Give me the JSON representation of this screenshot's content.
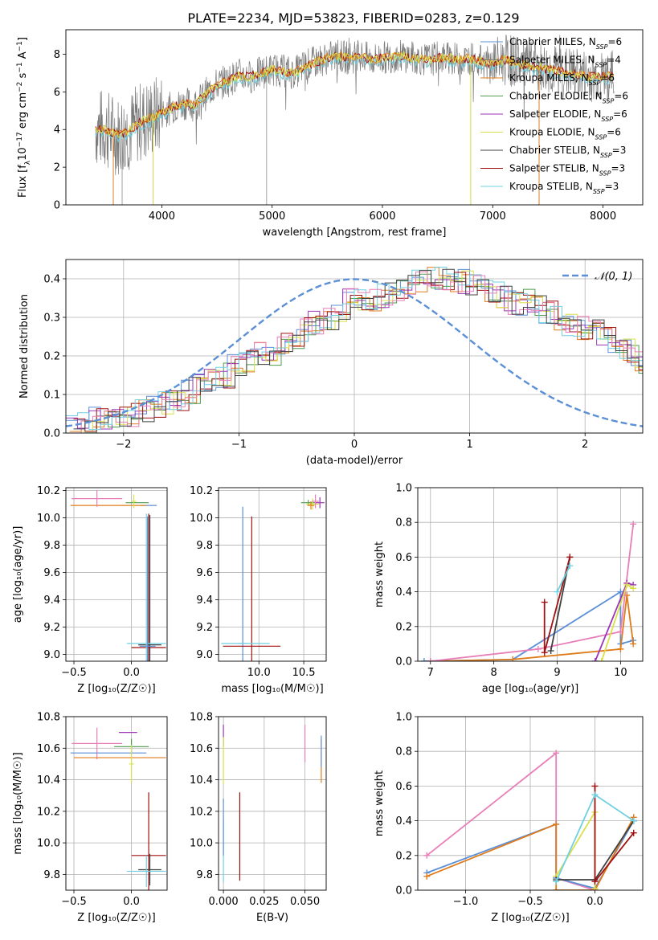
{
  "title": "PLATE=2234, MJD=53823, FIBERID=0283, z=0.129",
  "colors": {
    "Chabrier MILES": "#5b8fd6",
    "Salpeter MILES": "#7a7a7a",
    "Kroupa MILES": "#e07b1a",
    "Chabrier ELODIE": "#4f9c4f",
    "Salpeter ELODIE": "#9b36b8",
    "Kroupa ELODIE": "#d9e04a",
    "Chabrier STELIB": "#404040",
    "Salpeter STELIB": "#a01010",
    "Kroupa STELIB": "#6fd0e0",
    "extra_pink": "#e87fb8",
    "normal_curve": "#5b8fd6"
  },
  "chart_data": [
    {
      "id": "spectrum",
      "type": "line",
      "xlabel": "wavelength [Angstrom, rest frame]",
      "ylabel_parts": [
        "Flux [f",
        "λ",
        "10",
        "−17",
        " erg cm",
        "−2",
        " s",
        "−1",
        " A",
        "−1",
        "]"
      ],
      "xlim": [
        3130,
        8360
      ],
      "ylim": [
        0,
        9.3
      ],
      "xticks": [
        4000,
        5000,
        6000,
        7000,
        8000
      ],
      "yticks": [
        0,
        2,
        4,
        6,
        8
      ],
      "legend_position": "upper-right",
      "legend": [
        {
          "name": "Chabrier MILES",
          "n": "6"
        },
        {
          "name": "Salpeter MILES",
          "n": "4"
        },
        {
          "name": "Kroupa MILES",
          "n": "6"
        },
        {
          "name": "Chabrier ELODIE",
          "n": "6"
        },
        {
          "name": "Salpeter ELODIE",
          "n": "6"
        },
        {
          "name": "Kroupa ELODIE",
          "n": "6"
        },
        {
          "name": "Chabrier STELIB",
          "n": "3"
        },
        {
          "name": "Salpeter STELIB",
          "n": "3"
        },
        {
          "name": "Kroupa STELIB",
          "n": "3"
        }
      ],
      "legend_suffix": "N",
      "legend_sub": "SSP",
      "continuum": [
        [
          3400,
          4.1
        ],
        [
          3500,
          4.0
        ],
        [
          3600,
          3.7
        ],
        [
          3700,
          3.9
        ],
        [
          3800,
          4.4
        ],
        [
          3900,
          4.6
        ],
        [
          4000,
          4.9
        ],
        [
          4100,
          5.2
        ],
        [
          4200,
          5.4
        ],
        [
          4300,
          5.3
        ],
        [
          4400,
          5.9
        ],
        [
          4500,
          6.4
        ],
        [
          4600,
          6.6
        ],
        [
          4700,
          6.9
        ],
        [
          4800,
          6.8
        ],
        [
          4900,
          7.0
        ],
        [
          5000,
          7.2
        ],
        [
          5100,
          7.1
        ],
        [
          5200,
          7.0
        ],
        [
          5300,
          7.4
        ],
        [
          5400,
          7.6
        ],
        [
          5500,
          7.8
        ],
        [
          5600,
          7.9
        ],
        [
          5700,
          7.8
        ],
        [
          5800,
          7.9
        ],
        [
          5900,
          7.7
        ],
        [
          6000,
          7.8
        ],
        [
          6100,
          7.9
        ],
        [
          6200,
          7.9
        ],
        [
          6300,
          7.8
        ],
        [
          6400,
          7.7
        ],
        [
          6500,
          7.8
        ],
        [
          6600,
          7.8
        ],
        [
          6700,
          7.7
        ],
        [
          6800,
          7.8
        ],
        [
          6900,
          7.6
        ],
        [
          7000,
          7.5
        ],
        [
          7100,
          7.7
        ],
        [
          7200,
          7.6
        ],
        [
          7300,
          7.4
        ],
        [
          7400,
          7.3
        ],
        [
          7500,
          7.2
        ],
        [
          7600,
          7.1
        ],
        [
          7700,
          7.0
        ],
        [
          7800,
          6.9
        ],
        [
          7900,
          6.8
        ],
        [
          8000,
          6.8
        ],
        [
          8100,
          6.9
        ]
      ],
      "spikes": [
        [
          3560,
          0
        ],
        [
          3640,
          0
        ],
        [
          3920,
          0
        ],
        [
          4950,
          0
        ],
        [
          6800,
          0
        ],
        [
          7420,
          0
        ]
      ]
    },
    {
      "id": "residuals",
      "type": "step",
      "xlabel": "(data-model)/error",
      "ylabel": "Normed distribution",
      "xlim": [
        -2.5,
        2.5
      ],
      "ylim": [
        0,
        0.45
      ],
      "xticks": [
        -2,
        -1,
        0,
        1,
        2
      ],
      "xtick_labels": [
        "−2",
        "−1",
        "0",
        "1",
        "2"
      ],
      "yticks": [
        0.0,
        0.1,
        0.2,
        0.3,
        0.4
      ],
      "ytick_labels": [
        "0.0",
        "0.1",
        "0.2",
        "0.3",
        "0.4"
      ],
      "legend": "𝒩(0, 1)",
      "bin_width": 0.1,
      "base": [
        0.025,
        0.03,
        0.035,
        0.04,
        0.045,
        0.05,
        0.06,
        0.07,
        0.08,
        0.09,
        0.11,
        0.12,
        0.14,
        0.15,
        0.17,
        0.18,
        0.2,
        0.21,
        0.23,
        0.24,
        0.27,
        0.29,
        0.3,
        0.31,
        0.34,
        0.34,
        0.35,
        0.36,
        0.37,
        0.38,
        0.4,
        0.41,
        0.4,
        0.4,
        0.39,
        0.38,
        0.37,
        0.36,
        0.34,
        0.34,
        0.33,
        0.31,
        0.3,
        0.28,
        0.27,
        0.26,
        0.24,
        0.22,
        0.21,
        0.19,
        0.17,
        0.16,
        0.14,
        0.13,
        0.12,
        0.1,
        0.09,
        0.08,
        0.07,
        0.06,
        0.055,
        0.05,
        0.045,
        0.04,
        0.035,
        0.03,
        0.028,
        0.026,
        0.024,
        0.022
      ]
    },
    {
      "id": "age_vs_Z",
      "type": "errorbar",
      "xlabel": "Z [log₁₀(Z/Z☉)]",
      "ylabel": "age  [log₁₀(age/yr)]",
      "xlim": [
        -0.57,
        0.31
      ],
      "ylim": [
        8.95,
        10.22
      ],
      "xticks": [
        -0.5,
        0.0
      ],
      "xtick_labels": [
        "−0.5",
        "0.0"
      ],
      "yticks": [
        9.0,
        9.2,
        9.4,
        9.6,
        9.8,
        10.0,
        10.2
      ],
      "ytick_labels": [
        "9.0",
        "9.2",
        "9.4",
        "9.6",
        "9.8",
        "10.0",
        "10.2"
      ],
      "points": [
        {
          "s": "Chabrier MILES",
          "x": 0.15,
          "y": 10.09,
          "xe": 0.07,
          "ye": 0.0
        },
        {
          "s": "Kroupa MILES",
          "x": -0.2,
          "y": 10.09,
          "xe": 0.33,
          "ye": 0.0
        },
        {
          "s": "extra_pink",
          "x": -0.3,
          "y": 10.14,
          "xe": 0.22,
          "ye": 0.06
        },
        {
          "s": "Chabrier ELODIE",
          "x": 0.05,
          "y": 10.11,
          "xe": 0.1,
          "ye": 0.0
        },
        {
          "s": "Kroupa ELODIE",
          "x": 0.02,
          "y": 10.12,
          "xe": 0.02,
          "ye": 0.05
        },
        {
          "s": "Salpeter STELIB",
          "x": 0.15,
          "y": 9.05,
          "xe": 0.15,
          "ye": 0.98
        },
        {
          "s": "Chabrier STELIB",
          "x": 0.16,
          "y": 9.07,
          "xe": 0.1,
          "ye": 0.95
        },
        {
          "s": "Kroupa STELIB",
          "x": 0.13,
          "y": 9.08,
          "xe": 0.17,
          "ye": 0.95
        },
        {
          "s": "Chabrier MILES",
          "x": 0.14,
          "y": 9.06,
          "xe": 0.07,
          "ye": 0.95
        }
      ]
    },
    {
      "id": "age_vs_mass",
      "type": "errorbar",
      "xlabel": "mass [log₁₀(M/M☉)]",
      "ylabel": "",
      "xlim": [
        9.55,
        10.75
      ],
      "ylim": [
        8.95,
        10.22
      ],
      "xticks": [
        10.0,
        10.5
      ],
      "xtick_labels": [
        "10.0",
        "10.5"
      ],
      "yticks": [
        9.0,
        9.2,
        9.4,
        9.6,
        9.8,
        10.0,
        10.2
      ],
      "ytick_labels": [
        "9.0",
        "9.2",
        "9.4",
        "9.6",
        "9.8",
        "10.0",
        "10.2"
      ],
      "points": [
        {
          "s": "Chabrier MILES",
          "x": 9.82,
          "y": 9.08,
          "xe": 0.05,
          "ye": 1.0
        },
        {
          "s": "Salpeter STELIB",
          "x": 9.92,
          "y": 9.06,
          "xe": 0.32,
          "ye": 0.95
        },
        {
          "s": "Kroupa STELIB",
          "x": 9.85,
          "y": 9.08,
          "xe": 0.27,
          "ye": 0.0
        },
        {
          "s": "Chabrier ELODIE",
          "x": 10.55,
          "y": 10.11,
          "xe": 0.08,
          "ye": 0.02
        },
        {
          "s": "Kroupa ELODIE",
          "x": 10.6,
          "y": 10.1,
          "xe": 0.07,
          "ye": 0.04
        },
        {
          "s": "Salpeter ELODIE",
          "x": 10.68,
          "y": 10.11,
          "xe": 0.05,
          "ye": 0.04
        },
        {
          "s": "extra_pink",
          "x": 10.63,
          "y": 10.12,
          "xe": 0.04,
          "ye": 0.05
        },
        {
          "s": "Kroupa MILES",
          "x": 10.58,
          "y": 10.09,
          "xe": 0.04,
          "ye": 0.03
        }
      ]
    },
    {
      "id": "weight_vs_age",
      "type": "line",
      "xlabel": "age  [log₁₀(age/yr)]",
      "ylabel": "mass weight",
      "xlim": [
        6.8,
        10.35
      ],
      "ylim": [
        0,
        1.0
      ],
      "xticks": [
        7,
        8,
        9,
        10
      ],
      "yticks": [
        0.0,
        0.2,
        0.4,
        0.6,
        0.8,
        1.0
      ],
      "ytick_labels": [
        "0.0",
        "0.2",
        "0.4",
        "0.6",
        "0.8",
        "1.0"
      ],
      "series": [
        {
          "s": "Chabrier MILES",
          "pts": [
            [
              6.9,
              0.0
            ],
            [
              8.3,
              0.01
            ],
            [
              10.0,
              0.4
            ],
            [
              10.0,
              0.1
            ],
            [
              10.2,
              0.12
            ]
          ]
        },
        {
          "s": "Kroupa MILES",
          "pts": [
            [
              7.0,
              0.0
            ],
            [
              8.3,
              0.01
            ],
            [
              10.0,
              0.07
            ],
            [
              10.1,
              0.38
            ],
            [
              10.2,
              0.1
            ]
          ]
        },
        {
          "s": "extra_pink",
          "pts": [
            [
              7.0,
              0.0
            ],
            [
              8.7,
              0.07
            ],
            [
              10.0,
              0.17
            ],
            [
              10.2,
              0.79
            ]
          ]
        },
        {
          "s": "Salpeter ELODIE",
          "pts": [
            [
              9.6,
              0.0
            ],
            [
              10.1,
              0.45
            ],
            [
              10.2,
              0.44
            ]
          ]
        },
        {
          "s": "Kroupa ELODIE",
          "pts": [
            [
              9.7,
              0.0
            ],
            [
              10.1,
              0.44
            ],
            [
              10.2,
              0.42
            ]
          ]
        },
        {
          "s": "Chabrier STELIB",
          "pts": [
            [
              8.9,
              0.06
            ],
            [
              9.2,
              0.6
            ]
          ]
        },
        {
          "s": "Salpeter STELIB",
          "pts": [
            [
              8.8,
              0.34
            ],
            [
              8.8,
              0.05
            ],
            [
              9.2,
              0.6
            ]
          ]
        },
        {
          "s": "Kroupa STELIB",
          "pts": [
            [
              9.0,
              0.4
            ],
            [
              9.2,
              0.55
            ]
          ]
        }
      ]
    },
    {
      "id": "mass_vs_Z",
      "type": "errorbar",
      "xlabel": "Z [log₁₀(Z/Z☉)]",
      "ylabel": "mass [log₁₀(M/M☉)]",
      "xlim": [
        -0.57,
        0.31
      ],
      "ylim": [
        9.7,
        10.8
      ],
      "xticks": [
        -0.5,
        0.0
      ],
      "xtick_labels": [
        "−0.5",
        "0.0"
      ],
      "yticks": [
        9.8,
        10.0,
        10.2,
        10.4,
        10.6,
        10.8
      ],
      "ytick_labels": [
        "9.8",
        "10.0",
        "10.2",
        "10.4",
        "10.6",
        "10.8"
      ],
      "points": [
        {
          "s": "extra_pink",
          "x": -0.3,
          "y": 10.63,
          "xe": 0.22,
          "ye": 0.1
        },
        {
          "s": "Chabrier MILES",
          "x": -0.2,
          "y": 10.57,
          "xe": 0.33,
          "ye": 0.0
        },
        {
          "s": "Kroupa MILES",
          "x": -0.1,
          "y": 10.54,
          "xe": 0.4,
          "ye": 0.0
        },
        {
          "s": "Salpeter ELODIE",
          "x": -0.03,
          "y": 10.7,
          "xe": 0.08,
          "ye": 0.0
        },
        {
          "s": "Chabrier ELODIE",
          "x": 0.0,
          "y": 10.61,
          "xe": 0.15,
          "ye": 0.05
        },
        {
          "s": "Kroupa ELODIE",
          "x": 0.0,
          "y": 10.5,
          "xe": 0.02,
          "ye": 0.12
        },
        {
          "s": "Salpeter STELIB",
          "x": 0.15,
          "y": 9.92,
          "xe": 0.15,
          "ye": 0.4
        },
        {
          "s": "Chabrier STELIB",
          "x": 0.16,
          "y": 9.83,
          "xe": 0.1,
          "ye": 0.1
        },
        {
          "s": "Kroupa STELIB",
          "x": 0.13,
          "y": 9.82,
          "xe": 0.17,
          "ye": 0.1
        }
      ]
    },
    {
      "id": "mass_vs_EBV",
      "type": "errorbar",
      "xlabel": "E(B-V)",
      "ylabel": "",
      "xlim": [
        -0.003,
        0.063
      ],
      "ylim": [
        9.7,
        10.8
      ],
      "xticks": [
        0.0,
        0.025,
        0.05
      ],
      "xtick_labels": [
        "0.000",
        "0.025",
        "0.050"
      ],
      "yticks": [
        9.8,
        10.0,
        10.2,
        10.4,
        10.6,
        10.8
      ],
      "ytick_labels": [
        "9.8",
        "10.0",
        "10.2",
        "10.4",
        "10.6",
        "10.8"
      ],
      "points": [
        {
          "s": "Salpeter ELODIE",
          "x": 0.0,
          "y": 10.68,
          "xe": 0.0,
          "ye": 0.07
        },
        {
          "s": "Kroupa ELODIE",
          "x": 0.0,
          "y": 10.52,
          "xe": 0.0,
          "ye": 0.15
        },
        {
          "s": "Kroupa STELIB",
          "x": 0.0,
          "y": 9.95,
          "xe": 0.0,
          "ye": 0.2
        },
        {
          "s": "Chabrier MILES",
          "x": 0.0,
          "y": 10.1,
          "xe": 0.0,
          "ye": 0.18
        },
        {
          "s": "Salpeter STELIB",
          "x": 0.01,
          "y": 10.04,
          "xe": 0.0,
          "ye": 0.28
        },
        {
          "s": "extra_pink",
          "x": 0.05,
          "y": 10.63,
          "xe": 0.0,
          "ye": 0.12
        },
        {
          "s": "Kroupa MILES",
          "x": 0.06,
          "y": 10.52,
          "xe": 0.0,
          "ye": 0.14
        },
        {
          "s": "Chabrier MILES",
          "x": 0.06,
          "y": 10.58,
          "xe": 0.0,
          "ye": 0.1
        }
      ]
    },
    {
      "id": "weight_vs_Z",
      "type": "line",
      "xlabel": "Z [log₁₀(Z/Z☉)]",
      "ylabel": "mass weight",
      "xlim": [
        -1.37,
        0.37
      ],
      "ylim": [
        0,
        1.0
      ],
      "xticks": [
        -1.0,
        -0.5,
        0.0
      ],
      "xtick_labels": [
        "−1.0",
        "−0.5",
        "0.0"
      ],
      "yticks": [
        0.0,
        0.2,
        0.4,
        0.6,
        0.8,
        1.0
      ],
      "ytick_labels": [
        "0.0",
        "0.2",
        "0.4",
        "0.6",
        "0.8",
        "1.0"
      ],
      "series": [
        {
          "s": "extra_pink",
          "pts": [
            [
              -1.3,
              0.2
            ],
            [
              -0.3,
              0.79
            ],
            [
              -0.3,
              0.07
            ],
            [
              0.0,
              0.0
            ]
          ]
        },
        {
          "s": "Chabrier MILES",
          "pts": [
            [
              -1.3,
              0.1
            ],
            [
              -0.3,
              0.38
            ],
            [
              -0.3,
              0.07
            ],
            [
              0.0,
              0.01
            ],
            [
              0.3,
              0.4
            ]
          ]
        },
        {
          "s": "Kroupa MILES",
          "pts": [
            [
              -1.3,
              0.08
            ],
            [
              -0.3,
              0.38
            ],
            [
              -0.3,
              0.0
            ],
            [
              0.0,
              0.0
            ],
            [
              0.3,
              0.42
            ]
          ]
        },
        {
          "s": "Kroupa ELODIE",
          "pts": [
            [
              -0.3,
              0.08
            ],
            [
              0.0,
              0.45
            ],
            [
              0.0,
              0.01
            ]
          ]
        },
        {
          "s": "Chabrier STELIB",
          "pts": [
            [
              -0.3,
              0.06
            ],
            [
              0.0,
              0.06
            ],
            [
              0.3,
              0.4
            ]
          ]
        },
        {
          "s": "Salpeter STELIB",
          "pts": [
            [
              0.0,
              0.6
            ],
            [
              0.0,
              0.05
            ],
            [
              0.3,
              0.33
            ]
          ]
        },
        {
          "s": "Kroupa STELIB",
          "pts": [
            [
              -0.3,
              0.05
            ],
            [
              0.0,
              0.55
            ],
            [
              0.3,
              0.4
            ]
          ]
        }
      ]
    }
  ]
}
